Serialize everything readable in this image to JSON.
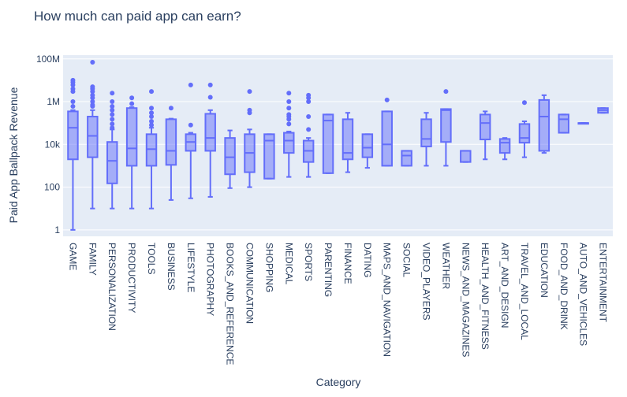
{
  "chart_data": {
    "type": "box",
    "title": "How much can paid app can earn?",
    "xlabel": "Category",
    "ylabel": "Paid App Ballpack Revenue",
    "yscale": "log",
    "ylim": [
      0.5,
      150000000
    ],
    "yticks": [
      {
        "value": 1,
        "label": "1"
      },
      {
        "value": 100,
        "label": "100"
      },
      {
        "value": 10000,
        "label": "10k"
      },
      {
        "value": 1000000,
        "label": "1M"
      },
      {
        "value": 100000000,
        "label": "100M"
      }
    ],
    "grid": true,
    "legend": "none",
    "colors": {
      "box_line": "#636efa",
      "box_fill": "#636efa",
      "plot_bg": "#e5ecf6",
      "grid": "#ffffff",
      "text": "#2a3f5f"
    },
    "categories": [
      {
        "name": "GAME",
        "min": 1,
        "q1": 2000,
        "median": 60000,
        "q3": 350000,
        "max": 400000,
        "outliers": [
          600000,
          1000000,
          3000000,
          4000000,
          6000000,
          8000000,
          10000000
        ]
      },
      {
        "name": "FAMILY",
        "min": 10,
        "q1": 2500,
        "median": 25000,
        "q3": 200000,
        "max": 400000,
        "outliers": [
          600000,
          700000,
          1000000,
          1500000,
          2000000,
          3000000,
          4000000,
          5000000,
          70000000
        ]
      },
      {
        "name": "PERSONALIZATION",
        "min": 10,
        "q1": 150,
        "median": 1700,
        "q3": 13000,
        "max": 50000,
        "outliers": [
          60000,
          90000,
          150000,
          250000,
          400000,
          600000,
          1000000,
          2500000
        ]
      },
      {
        "name": "PRODUCTIVITY",
        "min": 10,
        "q1": 1000,
        "median": 6500,
        "q3": 500000,
        "max": 550000,
        "outliers": [
          800000,
          1500000
        ]
      },
      {
        "name": "TOOLS",
        "min": 10,
        "q1": 1000,
        "median": 6000,
        "q3": 30000,
        "max": 60000,
        "outliers": [
          80000,
          120000,
          200000,
          300000,
          500000,
          3000000
        ]
      },
      {
        "name": "BUSINESS",
        "min": 25,
        "q1": 1100,
        "median": 5000,
        "q3": 150000,
        "max": 160000,
        "outliers": [
          500000
        ]
      },
      {
        "name": "LIFESTYLE",
        "min": 30,
        "q1": 5000,
        "median": 13000,
        "q3": 30000,
        "max": 35000,
        "outliers": [
          80000,
          6000000
        ]
      },
      {
        "name": "PHOTOGRAPHY",
        "min": 35,
        "q1": 5000,
        "median": 20000,
        "q3": 270000,
        "max": 400000,
        "outliers": [
          1600000,
          6000000
        ]
      },
      {
        "name": "BOOKS_AND_REFERENCE",
        "min": 90,
        "q1": 400,
        "median": 2500,
        "q3": 20000,
        "max": 45000,
        "outliers": []
      },
      {
        "name": "COMMUNICATION",
        "min": 100,
        "q1": 500,
        "median": 4000,
        "q3": 30000,
        "max": 50000,
        "outliers": [
          300000,
          400000,
          3000000
        ]
      },
      {
        "name": "SHOPPING",
        "min": 250,
        "q1": 250,
        "median": 15000,
        "q3": 30000,
        "max": 30000,
        "outliers": []
      },
      {
        "name": "MEDICAL",
        "min": 300,
        "q1": 4000,
        "median": 15000,
        "q3": 35000,
        "max": 40000,
        "outliers": [
          90000,
          150000,
          200000,
          250000,
          500000,
          1000000,
          2500000
        ]
      },
      {
        "name": "SPORTS",
        "min": 300,
        "q1": 1500,
        "median": 5000,
        "q3": 15000,
        "max": 20000,
        "outliers": [
          50000,
          200000,
          1000000,
          1500000,
          2000000
        ]
      },
      {
        "name": "PARENTING",
        "min": 450,
        "q1": 450,
        "median": 130000,
        "q3": 250000,
        "max": 250000,
        "outliers": []
      },
      {
        "name": "FINANCE",
        "min": 500,
        "q1": 2000,
        "median": 4000,
        "q3": 150000,
        "max": 300000,
        "outliers": []
      },
      {
        "name": "DATING",
        "min": 800,
        "q1": 2500,
        "median": 7000,
        "q3": 30000,
        "max": 30000,
        "outliers": []
      },
      {
        "name": "MAPS_AND_NAVIGATION",
        "min": 1000,
        "q1": 1000,
        "median": 10000,
        "q3": 350000,
        "max": 350000,
        "outliers": [
          1200000
        ]
      },
      {
        "name": "SOCIAL",
        "min": 1000,
        "q1": 1000,
        "median": 3000,
        "q3": 5000,
        "max": 5000,
        "outliers": []
      },
      {
        "name": "VIDEO_PLAYERS",
        "min": 1000,
        "q1": 8000,
        "median": 18000,
        "q3": 150000,
        "max": 300000,
        "outliers": []
      },
      {
        "name": "WEATHER",
        "min": 1000,
        "q1": 13000,
        "median": 400000,
        "q3": 450000,
        "max": 450000,
        "outliers": [
          3000000
        ]
      },
      {
        "name": "NEWS_AND_MAGAZINES",
        "min": 1500,
        "q1": 1500,
        "median": 5000,
        "q3": 5000,
        "max": 5000,
        "outliers": []
      },
      {
        "name": "HEALTH_AND_FITNESS",
        "min": 2000,
        "q1": 17000,
        "median": 100000,
        "q3": 250000,
        "max": 350000,
        "outliers": []
      },
      {
        "name": "ART_AND_DESIGN",
        "min": 2000,
        "q1": 4000,
        "median": 12000,
        "q3": 18000,
        "max": 20000,
        "outliers": []
      },
      {
        "name": "TRAVEL_AND_LOCAL",
        "min": 2500,
        "q1": 12000,
        "median": 20000,
        "q3": 90000,
        "max": 120000,
        "outliers": [
          900000
        ]
      },
      {
        "name": "EDUCATION",
        "min": 4000,
        "q1": 5000,
        "median": 200000,
        "q3": 1200000,
        "max": 2000000,
        "outliers": []
      },
      {
        "name": "FOOD_AND_DRINK",
        "min": 35000,
        "q1": 35000,
        "median": 150000,
        "q3": 250000,
        "max": 250000,
        "outliers": []
      },
      {
        "name": "AUTO_AND_VEHICLES",
        "min": 100000,
        "q1": 100000,
        "median": 100000,
        "q3": 100000,
        "max": 100000,
        "outliers": []
      },
      {
        "name": "ENTERTAINMENT",
        "min": 300000,
        "q1": 300000,
        "median": 400000,
        "q3": 500000,
        "max": 500000,
        "outliers": []
      }
    ]
  }
}
